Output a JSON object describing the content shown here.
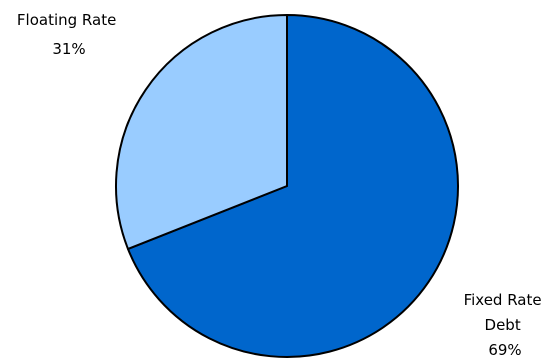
{
  "chart_data": {
    "type": "pie",
    "title": "",
    "slices": [
      {
        "name": "Fixed Rate Debt",
        "label_lines": [
          "Fixed Rate",
          "Debt"
        ],
        "value": 69,
        "value_label": "69%",
        "color": "#0066CC"
      },
      {
        "name": "Floating Rate",
        "label_lines": [
          "Floating Rate"
        ],
        "value": 31,
        "value_label": "31%",
        "color": "#99CCFF"
      }
    ],
    "start_angle_deg": 0,
    "direction": "clockwise",
    "legend": "none"
  }
}
